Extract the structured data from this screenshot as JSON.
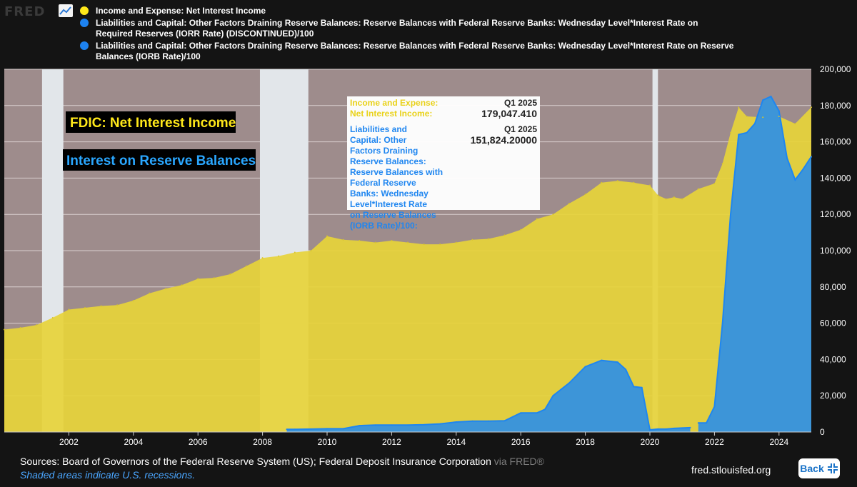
{
  "app": {
    "logo_text": "FRED"
  },
  "legend": [
    {
      "color": "#ffe81a",
      "label": "Income and Expense: Net Interest Income"
    },
    {
      "color": "#1d82f0",
      "label": "Liabilities and Capital: Other Factors Draining Reserve Balances: Reserve Balances with Federal Reserve Banks: Wednesday Level*Interest Rate on Required Reserves (IORR Rate) (DISCONTINUED)/100"
    },
    {
      "color": "#1d82f0",
      "label": "Liabilities and Capital: Other Factors Draining Reserve Balances: Reserve Balances with Federal Reserve Banks: Wednesday Level*Interest Rate on Reserve Balances (IORB Rate)/100"
    }
  ],
  "annotations": {
    "nii": "FDIC: Net Interest Income",
    "iorb": "Interest on Reserve Balances"
  },
  "tooltip": {
    "s1_label": "Income and Expense: Net Interest Income:",
    "s1_period": "Q1 2025",
    "s1_value": "179,047.410",
    "s2_label": "Liabilities and Capital: Other Factors Draining Reserve Balances: Reserve Balances with Federal Reserve Banks: Wednesday Level*Interest Rate on Reserve Balances (IORB Rate)/100:",
    "s2_period": "Q1 2025",
    "s2_value": "151,824.20000"
  },
  "footer": {
    "sources": "Sources: Board of Governors of the Federal Reserve System (US); Federal Deposit Insurance Corporation",
    "via": "via FRED®",
    "note": "Shaded areas indicate U.S. recessions.",
    "site": "fred.stlouisfed.org",
    "back": "Back"
  },
  "colors": {
    "plot_bg": "#9e8c8c",
    "recession": "#e2e6ea",
    "nii_fill": "#e7d43a",
    "iorb_fill": "#3d95d8",
    "iorb_line": "#1f86f0"
  },
  "chart_data": {
    "type": "area",
    "xlabel": "",
    "ylabel": "",
    "ylim": [
      0,
      200000
    ],
    "xlim": [
      2000.0,
      2025.0
    ],
    "x_ticks": [
      2002,
      2004,
      2006,
      2008,
      2010,
      2012,
      2014,
      2016,
      2018,
      2020,
      2022,
      2024
    ],
    "y_ticks": [
      0,
      20000,
      40000,
      60000,
      80000,
      100000,
      120000,
      140000,
      160000,
      180000,
      200000
    ],
    "recessions": [
      [
        2001.17,
        2001.83
      ],
      [
        2007.92,
        2009.42
      ],
      [
        2020.08,
        2020.25
      ]
    ],
    "series": [
      {
        "name": "Income and Expense: Net Interest Income",
        "x": [
          2000.0,
          2000.5,
          2001.0,
          2001.5,
          2002.0,
          2002.5,
          2003.0,
          2003.5,
          2004.0,
          2004.5,
          2005.0,
          2005.5,
          2006.0,
          2006.5,
          2007.0,
          2007.5,
          2008.0,
          2008.5,
          2009.0,
          2009.5,
          2010.0,
          2010.5,
          2011.0,
          2011.5,
          2012.0,
          2012.5,
          2013.0,
          2013.5,
          2014.0,
          2014.5,
          2015.0,
          2015.5,
          2016.0,
          2016.5,
          2017.0,
          2017.5,
          2018.0,
          2018.5,
          2019.0,
          2019.5,
          2020.0,
          2020.25,
          2020.5,
          2020.75,
          2021.0,
          2021.5,
          2022.0,
          2022.25,
          2022.5,
          2022.75,
          2023.0,
          2023.5,
          2024.0,
          2024.5,
          2025.0
        ],
        "values": [
          56500,
          57500,
          59000,
          63000,
          67500,
          68500,
          69500,
          70000,
          72500,
          76500,
          79000,
          81000,
          84500,
          85000,
          87000,
          91500,
          96000,
          97000,
          99000,
          100000,
          108000,
          106000,
          105500,
          104500,
          105500,
          104500,
          103500,
          103500,
          104500,
          106000,
          106500,
          108500,
          111500,
          117500,
          120000,
          126000,
          131000,
          137500,
          138500,
          137500,
          136000,
          130500,
          128500,
          129500,
          128500,
          134000,
          137000,
          148000,
          165000,
          179000,
          174000,
          173500,
          174000,
          170000,
          179047
        ]
      },
      {
        "name": "Liabilities and Capital: Other Factors Draining Reserve Balances: Reserve Balances with Federal Reserve Banks: Wednesday Level*Interest Rate on Required Reserves (IORR Rate) (DISCONTINUED)/100",
        "x": [
          2008.75,
          2009.0,
          2009.5,
          2010.0,
          2010.5,
          2011.0,
          2011.5,
          2012.0,
          2012.5,
          2013.0,
          2013.5,
          2014.0,
          2014.5,
          2015.0,
          2015.5,
          2016.0,
          2016.5,
          2016.75,
          2017.0,
          2017.5,
          2018.0,
          2018.5,
          2019.0,
          2019.25,
          2019.5,
          2019.75,
          2020.0,
          2020.25,
          2020.5,
          2020.75,
          2021.0,
          2021.25
        ],
        "values": [
          1500,
          1500,
          1600,
          1800,
          1800,
          3500,
          3800,
          3800,
          3800,
          4000,
          4500,
          5500,
          6000,
          6000,
          6200,
          10500,
          10500,
          12500,
          20000,
          27000,
          36000,
          39500,
          38500,
          34500,
          25000,
          24500,
          1200,
          1600,
          1600,
          2000,
          2200,
          2400
        ]
      },
      {
        "name": "Liabilities and Capital: Other Factors Draining Reserve Balances: Reserve Balances with Federal Reserve Banks: Wednesday Level*Interest Rate on Reserve Balances (IORB Rate)/100",
        "x": [
          2021.5,
          2021.75,
          2022.0,
          2022.25,
          2022.5,
          2022.75,
          2023.0,
          2023.25,
          2023.5,
          2023.75,
          2024.0,
          2024.25,
          2024.5,
          2024.75,
          2025.0
        ],
        "values": [
          5000,
          5000,
          14000,
          60000,
          120000,
          164000,
          165000,
          170000,
          183000,
          185000,
          177000,
          151000,
          139000,
          145000,
          151824
        ]
      }
    ]
  }
}
